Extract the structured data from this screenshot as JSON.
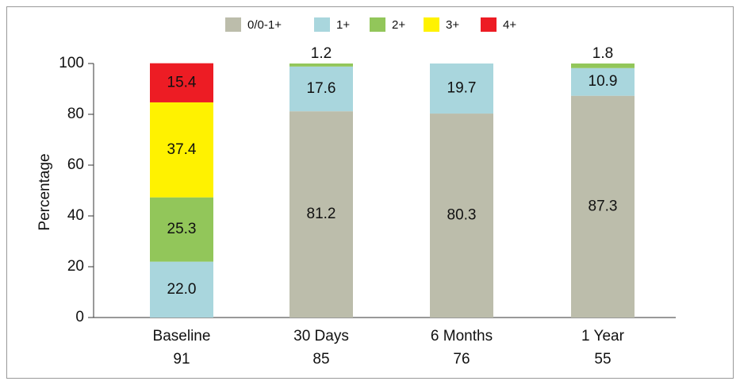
{
  "chart_data": {
    "type": "stacked-bar",
    "y_label": "Percentage",
    "categories": [
      "Baseline",
      "30 Days",
      "6 Months",
      "1 Year"
    ],
    "n": [
      91,
      85,
      76,
      55
    ],
    "series": [
      {
        "name": "0/0-1+",
        "color": "#bcbdab",
        "values": [
          null,
          81.2,
          80.3,
          87.3
        ]
      },
      {
        "name": "1+",
        "color": "#a9d6dd",
        "values": [
          22.0,
          17.6,
          19.7,
          10.9
        ],
        "value_labels": [
          "22.0",
          "17.6",
          "19.7",
          "10.9"
        ]
      },
      {
        "name": "2+",
        "color": "#92c65a",
        "values": [
          25.3,
          1.2,
          null,
          1.8
        ]
      },
      {
        "name": "3+",
        "color": "#fff200",
        "values": [
          37.4,
          null,
          null,
          null
        ]
      },
      {
        "name": "4+",
        "color": "#ed1c24",
        "values": [
          15.4,
          null,
          null,
          null
        ]
      }
    ],
    "ylim": [
      0,
      100
    ],
    "yticks": [
      0,
      20,
      40,
      60,
      80,
      100
    ]
  }
}
